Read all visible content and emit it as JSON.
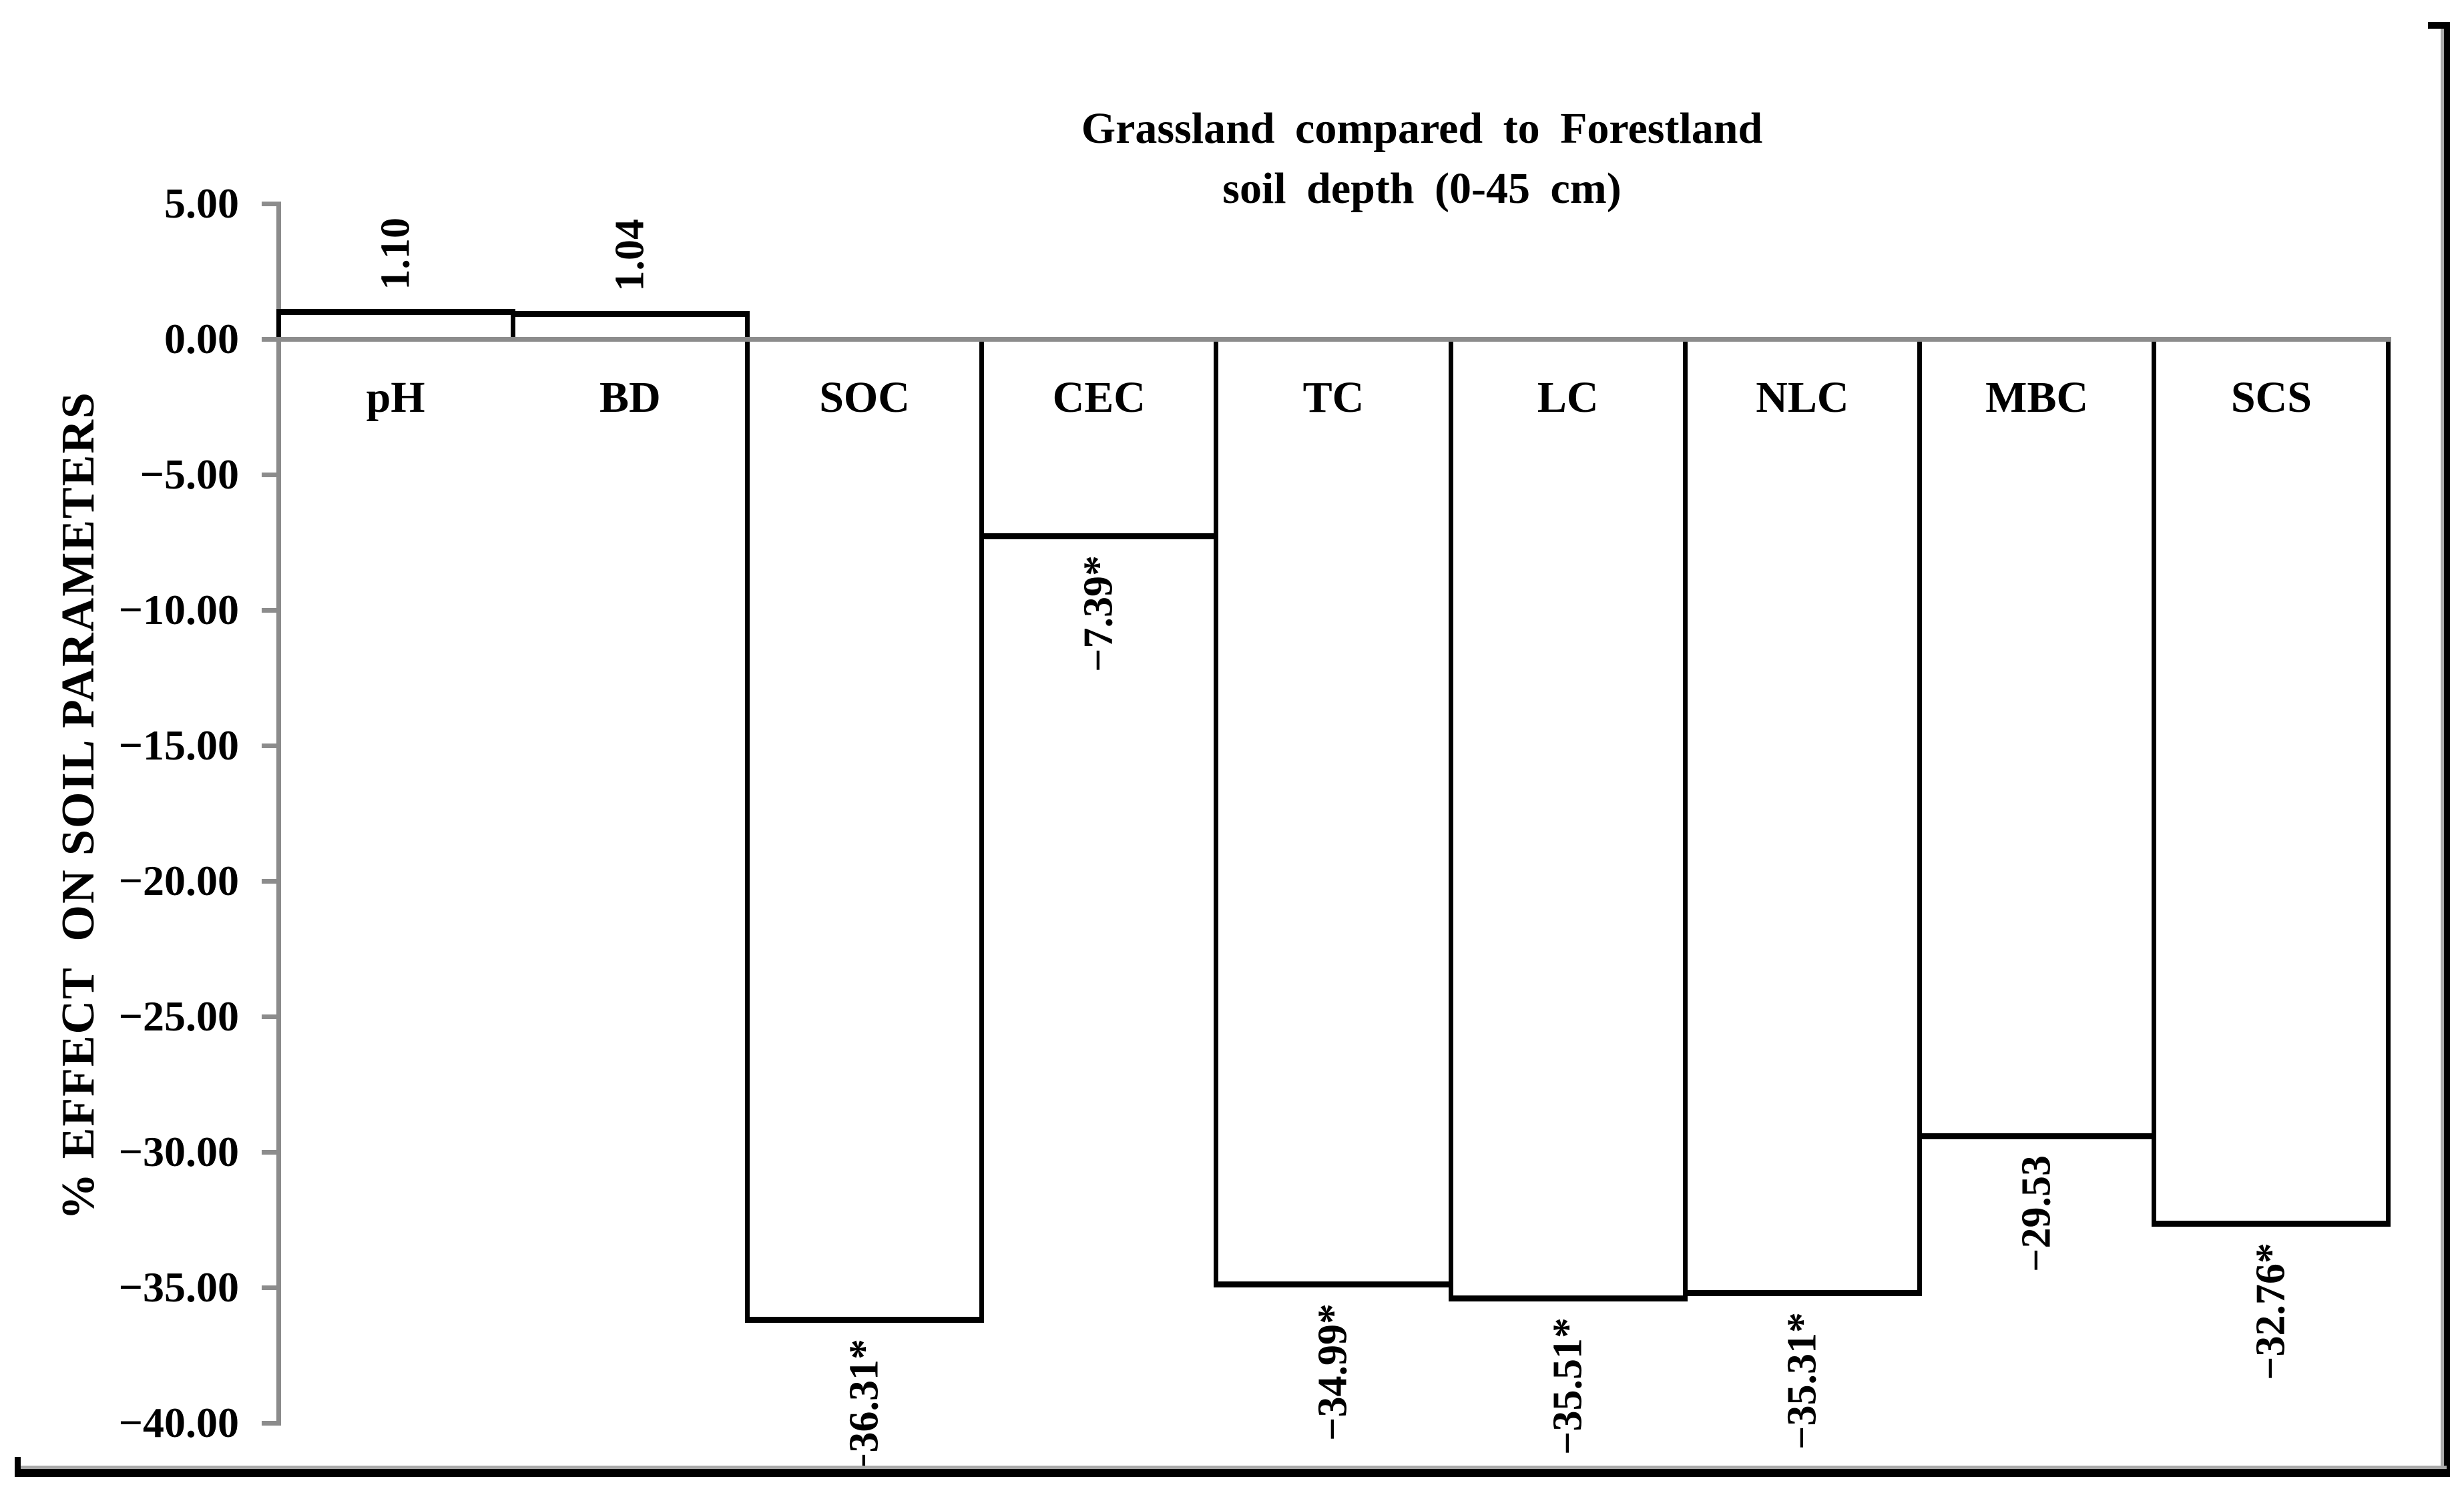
{
  "title": {
    "line1": "Grassland compared to Forestland",
    "line2": "soil depth (0-45 cm)"
  },
  "y_axis": {
    "label": "% EFFECT  ON SOIL PARAMETERS",
    "ticks": [
      {
        "label": "5.00",
        "value": 5
      },
      {
        "label": "0.00",
        "value": 0
      },
      {
        "label": "−5.00",
        "value": -5
      },
      {
        "label": "−10.00",
        "value": -10
      },
      {
        "label": "−15.00",
        "value": -15
      },
      {
        "label": "−20.00",
        "value": -20
      },
      {
        "label": "−25.00",
        "value": -25
      },
      {
        "label": "−30.00",
        "value": -30
      },
      {
        "label": "−35.00",
        "value": -35
      },
      {
        "label": "−40.00",
        "value": -40
      }
    ]
  },
  "chart_data": {
    "type": "bar",
    "title": "Grassland compared to Forestland soil depth (0-45 cm)",
    "categories": [
      "pH",
      "BD",
      "SOC",
      "CEC",
      "TC",
      "LC",
      "NLC",
      "MBC",
      "SCS"
    ],
    "values": [
      1.1,
      1.04,
      -36.31,
      -7.39,
      -34.99,
      -35.51,
      -35.31,
      -29.53,
      -32.76
    ],
    "data_labels": [
      "1.10",
      "1.04",
      "−36.31*",
      "−7.39*",
      "−34.99*",
      "−35.51*",
      "−35.31*",
      "−29.53",
      "−32.76*"
    ],
    "significance_marker": "*",
    "xlabel": "",
    "ylabel": "% EFFECT  ON SOIL PARAMETERS",
    "ylim": [
      -40,
      5
    ],
    "ytick_step": 5,
    "bar_fill": "#ffffff",
    "bar_border_color": "#000000",
    "axis_color": "#8c8c8c",
    "grid": false,
    "legend": false
  }
}
